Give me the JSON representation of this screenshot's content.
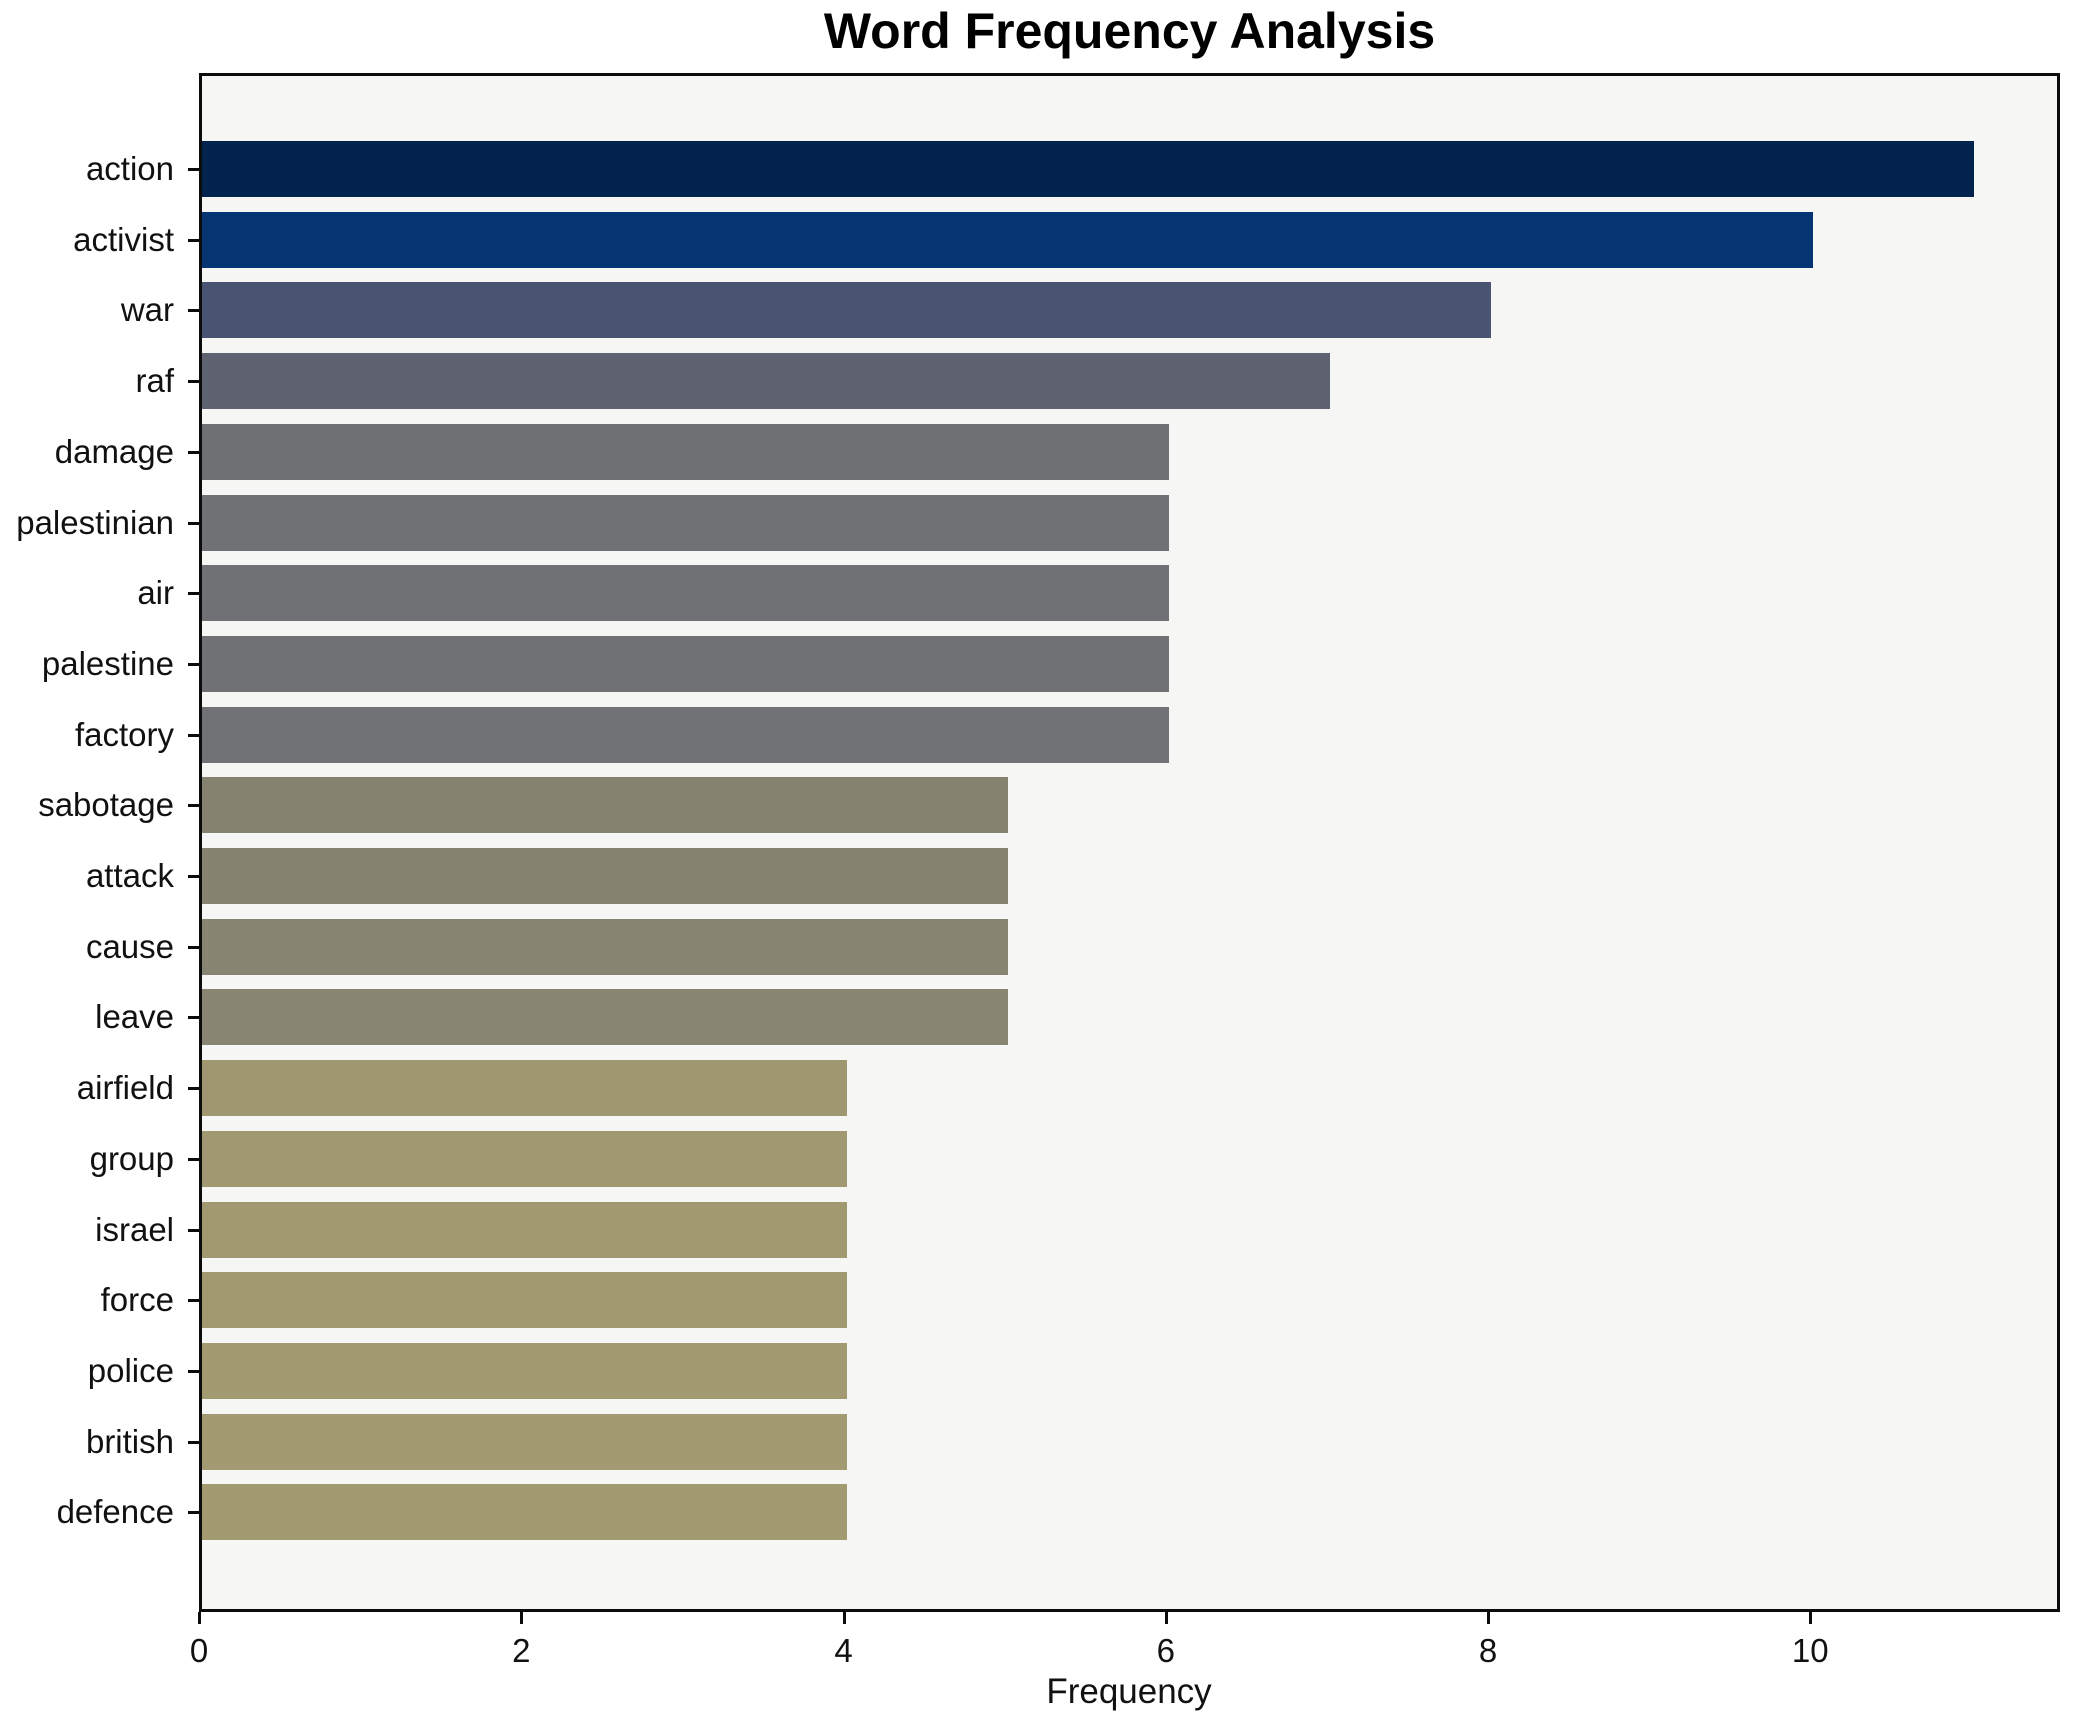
{
  "title": "Word Frequency Analysis",
  "chart_data": {
    "type": "bar",
    "orientation": "horizontal",
    "title": "Word Frequency Analysis",
    "xlabel": "Frequency",
    "ylabel": "",
    "categories": [
      "action",
      "activist",
      "war",
      "raf",
      "damage",
      "palestinian",
      "air",
      "palestine",
      "factory",
      "sabotage",
      "attack",
      "cause",
      "leave",
      "airfield",
      "group",
      "israel",
      "force",
      "police",
      "british",
      "defence"
    ],
    "values": [
      11,
      10,
      8,
      7,
      6,
      6,
      6,
      6,
      6,
      5,
      5,
      5,
      5,
      4,
      4,
      4,
      4,
      4,
      4,
      4
    ],
    "bar_colors": [
      "#02234d",
      "#053673",
      "#4a5372",
      "#5e6170",
      "#6f7073",
      "#707174",
      "#707174",
      "#707174",
      "#717275",
      "#858270",
      "#868371",
      "#878472",
      "#888573",
      "#9f9770",
      "#a09870",
      "#a1996f",
      "#a1996f",
      "#a29a70",
      "#a29a70",
      "#a29a70"
    ],
    "xticks": [
      0,
      2,
      4,
      6,
      8,
      10
    ],
    "xlim": [
      0,
      11.55
    ],
    "grid": false,
    "legend": "none",
    "plot_background": "#f6f6f5",
    "figure_background": "#ffffff",
    "axis_color": "#0c0c0c",
    "text_color": "#111111"
  }
}
